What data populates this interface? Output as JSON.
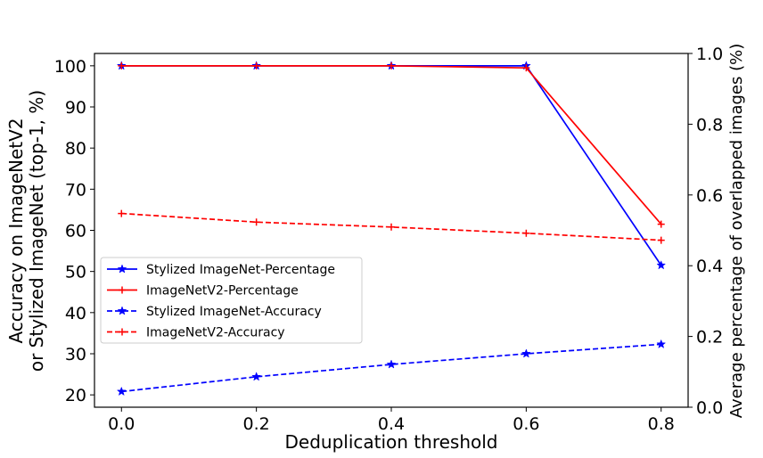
{
  "chart_data": {
    "type": "line",
    "title": "",
    "x": [
      0.0,
      0.2,
      0.4,
      0.6,
      0.8
    ],
    "x_ticks": [
      "0.0",
      "0.2",
      "0.4",
      "0.6",
      "0.8"
    ],
    "xlabel": "Deduplication threshold",
    "xlim": [
      -0.04,
      0.84
    ],
    "y_left": {
      "label_line1": "Accuracy on ImageNetV2",
      "label_line2": "or Stylized ImageNet (top-1, %)",
      "ylim": [
        17,
        103
      ],
      "ticks": [
        "20",
        "30",
        "40",
        "50",
        "60",
        "70",
        "80",
        "90",
        "100"
      ]
    },
    "y_right": {
      "label": "Average percentage of overlapped images (%)",
      "ylim": [
        0.0,
        1.0
      ],
      "ticks": [
        "0.0",
        "0.2",
        "0.4",
        "0.6",
        "0.8",
        "1.0"
      ]
    },
    "series": [
      {
        "name": "Stylized ImageNet-Percentage",
        "axis": "left",
        "color": "#0000ff",
        "dash": false,
        "marker": "star",
        "values": [
          100,
          100,
          100,
          100,
          51.5
        ]
      },
      {
        "name": "ImageNetV2-Percentage",
        "axis": "left",
        "color": "#ff0000",
        "dash": false,
        "marker": "plus",
        "values": [
          100,
          100,
          100,
          99.5,
          61.5
        ]
      },
      {
        "name": "Stylized ImageNet-Accuracy",
        "axis": "left",
        "color": "#0000ff",
        "dash": true,
        "marker": "star",
        "values": [
          20.8,
          24.4,
          27.4,
          30.0,
          32.3
        ]
      },
      {
        "name": "ImageNetV2-Accuracy",
        "axis": "left",
        "color": "#ff0000",
        "dash": true,
        "marker": "plus",
        "values": [
          64.1,
          62.0,
          60.8,
          59.3,
          57.6
        ]
      }
    ],
    "legend_position": "center-left",
    "grid": false
  }
}
